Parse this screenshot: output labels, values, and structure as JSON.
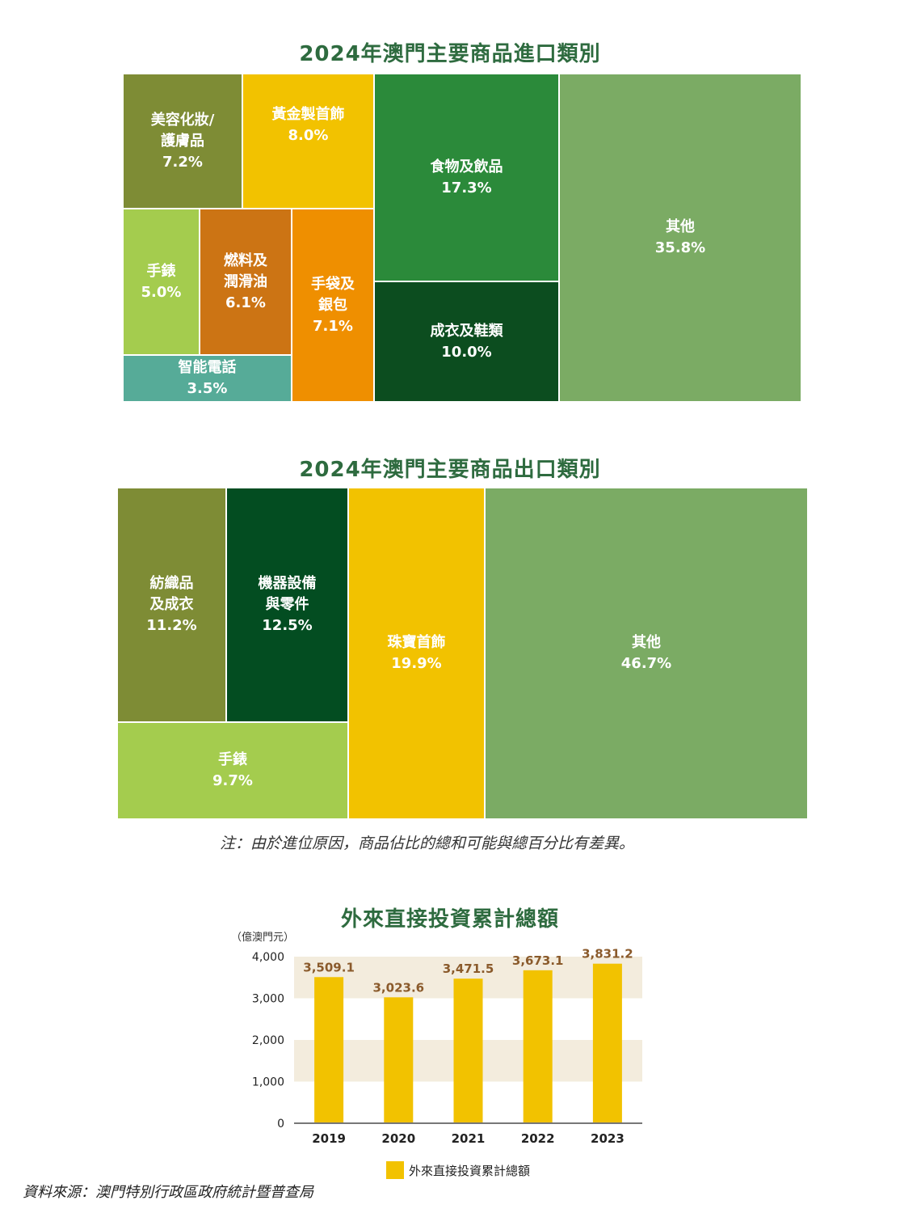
{
  "import_chart": {
    "title": "2024年澳門主要商品進口類別",
    "tiles": [
      {
        "label": "美容化妝/\n護膚品",
        "value": "7.2%",
        "color": "#7e8c35"
      },
      {
        "label": "黃金製首飾",
        "value": "8.0%",
        "color": "#f2c200"
      },
      {
        "label": "食物及飲品",
        "value": "17.3%",
        "color": "#2b8a3a"
      },
      {
        "label": "其他",
        "value": "35.8%",
        "color": "#7bab64"
      },
      {
        "label": "手錶",
        "value": "5.0%",
        "color": "#a4cc4e"
      },
      {
        "label": "燃料及\n潤滑油",
        "value": "6.1%",
        "color": "#cc7414"
      },
      {
        "label": "手袋及\n銀包",
        "value": "7.1%",
        "color": "#ef8f00"
      },
      {
        "label": "成衣及鞋類",
        "value": "10.0%",
        "color": "#0c4d1f"
      },
      {
        "label": "智能電話",
        "value": "3.5%",
        "color": "#56ab98"
      }
    ]
  },
  "export_chart": {
    "title": "2024年澳門主要商品出口類別",
    "tiles": [
      {
        "label": "紡織品\n及成衣",
        "value": "11.2%",
        "color": "#7e8c35"
      },
      {
        "label": "機器設備\n與零件",
        "value": "12.5%",
        "color": "#034d21"
      },
      {
        "label": "珠寶首飾",
        "value": "19.9%",
        "color": "#f2c200"
      },
      {
        "label": "其他",
        "value": "46.7%",
        "color": "#7bab64"
      },
      {
        "label": "手錶",
        "value": "9.7%",
        "color": "#a4cc4e"
      }
    ]
  },
  "note": "注：由於進位原因，商品佔比的總和可能與總百分比有差異。",
  "chart_data": [
    {
      "type": "bar",
      "title": "外來直接投資累計總額",
      "unit_label": "（億澳門元）",
      "categories": [
        "2019",
        "2020",
        "2021",
        "2022",
        "2023"
      ],
      "series": [
        {
          "name": "外來直接投資累計總額",
          "values": [
            3509.1,
            3023.6,
            3471.5,
            3673.1,
            3831.2
          ],
          "color": "#f2c200"
        }
      ],
      "data_labels": [
        "3,509.1",
        "3,023.6",
        "3,471.5",
        "3,673.1",
        "3,831.2"
      ],
      "yticks": [
        "0",
        "1,000",
        "2,000",
        "3,000",
        "4,000"
      ],
      "ylim": [
        0,
        4000
      ],
      "band_color": "#f3ecdd",
      "label_color": "#8a5a2b",
      "legend_position": "bottom"
    }
  ],
  "source": "資料來源：澳門特別行政區政府統計暨普查局"
}
